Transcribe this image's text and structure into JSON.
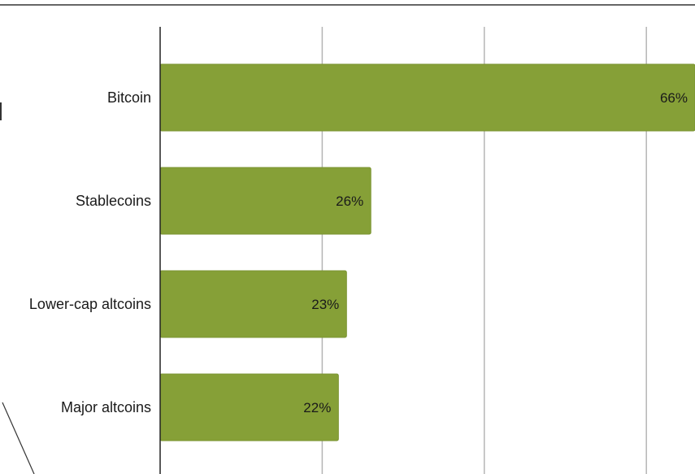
{
  "chart_data": {
    "type": "bar",
    "orientation": "horizontal",
    "categories": [
      "Bitcoin",
      "Stablecoins",
      "Lower-cap altcoins",
      "Major altcoins"
    ],
    "values": [
      66,
      26,
      23,
      22
    ],
    "value_labels": [
      "66%",
      "26%",
      "23%",
      "22%"
    ],
    "unit": "%",
    "xlim": [
      0,
      66
    ],
    "grid": true,
    "legend": "none",
    "title": "",
    "xlabel": "",
    "ylabel": ""
  },
  "colors": {
    "bar": "#86a037",
    "bar_edge": "#7a9331",
    "grid": "#b5b5b5",
    "axis": "#222222",
    "frame": "#333333"
  }
}
